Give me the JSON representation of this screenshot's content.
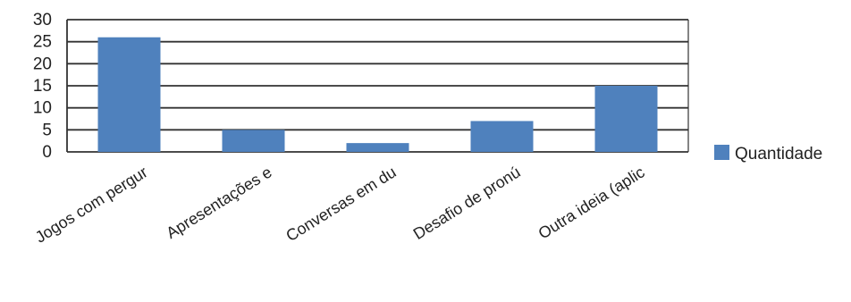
{
  "chart_data": {
    "type": "bar",
    "categories": [
      "Jogos com pergur",
      "Apresentações e",
      "Conversas em du",
      "Desafio de pronú",
      "Outra ideia (aplic"
    ],
    "series": [
      {
        "name": "Quantidade",
        "values": [
          26,
          5,
          2,
          7,
          15
        ],
        "color": "#4F81BD"
      }
    ],
    "ylim": [
      0,
      30
    ],
    "yticks": [
      0,
      5,
      10,
      15,
      20,
      25,
      30
    ],
    "grid": true,
    "legend": "right"
  }
}
